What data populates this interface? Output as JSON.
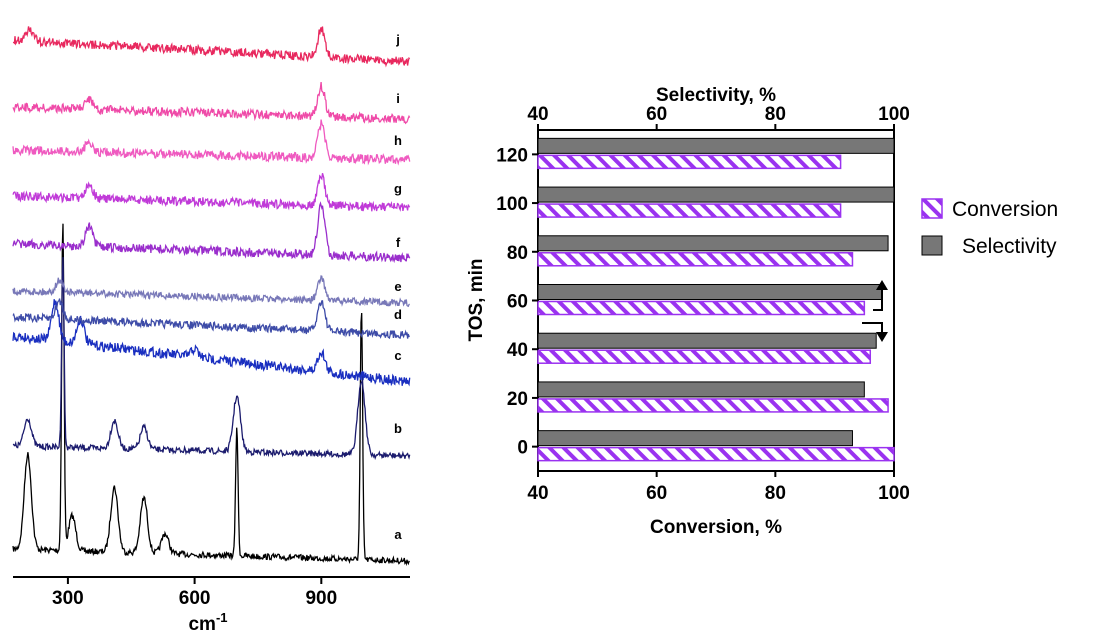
{
  "chart_data": [
    {
      "type": "line",
      "xlabel": "cm",
      "xlabel_sup": "-1",
      "xlim": [
        170,
        1110
      ],
      "xticks": [
        300,
        600,
        900
      ],
      "y_axis_shown": false,
      "series": [
        {
          "name": "a",
          "color": "#000000",
          "peaks": [
            [
              205,
              95
            ],
            [
              288,
              330
            ],
            [
              310,
              35
            ],
            [
              410,
              65
            ],
            [
              480,
              55
            ],
            [
              530,
              20
            ],
            [
              700,
              130
            ],
            [
              995,
              250
            ]
          ],
          "noise": 6,
          "baseline_start": 6,
          "baseline_end": -6
        },
        {
          "name": "b",
          "color": "#1c1c6e",
          "peaks": [
            [
              205,
              28
            ],
            [
              288,
              190
            ],
            [
              410,
              28
            ],
            [
              480,
              22
            ],
            [
              700,
              55
            ],
            [
              995,
              75
            ]
          ],
          "noise": 6,
          "baseline_start": 8,
          "baseline_end": -2
        },
        {
          "name": "c",
          "color": "#1a2fc0",
          "peaks": [
            [
              270,
              40
            ],
            [
              330,
              25
            ],
            [
              600,
              8
            ],
            [
              900,
              20
            ]
          ],
          "noise": 10,
          "baseline_start": 46,
          "baseline_end": 0
        },
        {
          "name": "d",
          "color": "#3e4ca8",
          "peaks": [
            [
              280,
              18
            ],
            [
              900,
              30
            ]
          ],
          "noise": 8,
          "baseline_start": 18,
          "baseline_end": 0
        },
        {
          "name": "e",
          "color": "#7878b8",
          "peaks": [
            [
              280,
              12
            ],
            [
              900,
              22
            ]
          ],
          "noise": 7,
          "baseline_start": 12,
          "baseline_end": 0
        },
        {
          "name": "f",
          "color": "#9a2ecc",
          "peaks": [
            [
              350,
              20
            ],
            [
              900,
              50
            ]
          ],
          "noise": 9,
          "baseline_start": 14,
          "baseline_end": 0
        },
        {
          "name": "g",
          "color": "#c03ad8",
          "peaks": [
            [
              350,
              15
            ],
            [
              900,
              30
            ]
          ],
          "noise": 9,
          "baseline_start": 12,
          "baseline_end": 0
        },
        {
          "name": "h",
          "color": "#ef5ac0",
          "peaks": [
            [
              350,
              10
            ],
            [
              900,
              34
            ]
          ],
          "noise": 9,
          "baseline_start": 10,
          "baseline_end": 0
        },
        {
          "name": "i",
          "color": "#ef4aa8",
          "peaks": [
            [
              350,
              10
            ],
            [
              900,
              30
            ]
          ],
          "noise": 9,
          "baseline_start": 12,
          "baseline_end": 0
        },
        {
          "name": "j",
          "color": "#e8285e",
          "peaks": [
            [
              210,
              12
            ],
            [
              900,
              28
            ]
          ],
          "noise": 9,
          "baseline_start": 22,
          "baseline_end": 0
        }
      ]
    },
    {
      "type": "bar",
      "orientation": "horizontal",
      "ylabel": "TOS, min",
      "xlabel_bottom": "Conversion, %",
      "xlabel_top": "Selectivity, %",
      "xlim": [
        40,
        100
      ],
      "xticks": [
        40,
        60,
        80,
        100
      ],
      "categories": [
        0,
        20,
        40,
        60,
        80,
        100,
        120
      ],
      "series": [
        {
          "name": "Conversion",
          "pattern": "hatched",
          "color": "#9a32f0",
          "values": [
            100,
            99,
            96,
            95,
            93,
            91,
            91
          ]
        },
        {
          "name": "Selectivity",
          "pattern": "solid",
          "color": "#777777",
          "values": [
            93,
            95,
            97,
            98,
            99,
            100,
            100
          ]
        }
      ],
      "legend_position": "right"
    }
  ]
}
